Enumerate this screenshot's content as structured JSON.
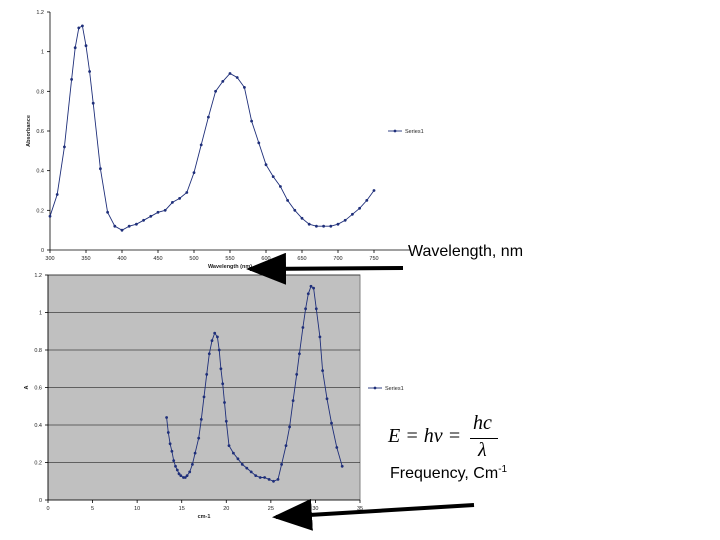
{
  "chart_data": [
    {
      "type": "line",
      "series": [
        {
          "name": "Series1",
          "x": [
            300,
            310,
            320,
            330,
            335,
            340,
            345,
            350,
            355,
            360,
            370,
            380,
            390,
            400,
            410,
            420,
            430,
            440,
            450,
            460,
            470,
            480,
            490,
            500,
            510,
            520,
            530,
            540,
            550,
            560,
            570,
            580,
            590,
            600,
            610,
            620,
            630,
            640,
            650,
            660,
            670,
            680,
            690,
            700,
            710,
            720,
            730,
            740,
            750
          ],
          "y": [
            0.17,
            0.28,
            0.52,
            0.86,
            1.02,
            1.12,
            1.13,
            1.03,
            0.9,
            0.74,
            0.41,
            0.19,
            0.12,
            0.1,
            0.12,
            0.13,
            0.15,
            0.17,
            0.19,
            0.2,
            0.24,
            0.26,
            0.29,
            0.39,
            0.53,
            0.67,
            0.8,
            0.85,
            0.89,
            0.87,
            0.82,
            0.65,
            0.54,
            0.43,
            0.37,
            0.32,
            0.25,
            0.2,
            0.16,
            0.13,
            0.12,
            0.12,
            0.12,
            0.13,
            0.15,
            0.18,
            0.21,
            0.25,
            0.3
          ]
        }
      ],
      "xlabel": "Wavelength (nm)",
      "ylabel": "Absorbance",
      "xlim": [
        300,
        800
      ],
      "ylim": [
        0,
        1.2
      ],
      "xticks": [
        "300",
        "350",
        "400",
        "450",
        "500",
        "550",
        "600",
        "650",
        "700",
        "750"
      ],
      "yticks": [
        "0",
        "0.2",
        "0.4",
        "0.6",
        "0.8",
        "1",
        "1.2"
      ],
      "grid": false,
      "legend": "right"
    },
    {
      "type": "line",
      "series": [
        {
          "name": "Series1",
          "x": [
            13.3,
            13.5,
            13.7,
            13.9,
            14.1,
            14.3,
            14.5,
            14.7,
            14.9,
            15.2,
            15.4,
            15.6,
            15.9,
            16.2,
            16.5,
            16.9,
            17.2,
            17.5,
            17.8,
            18.1,
            18.4,
            18.7,
            19.0,
            19.2,
            19.4,
            19.6,
            19.8,
            20.0,
            20.3,
            20.8,
            21.3,
            21.8,
            22.3,
            22.8,
            23.3,
            23.8,
            24.3,
            24.8,
            25.3,
            25.8,
            26.2,
            26.7,
            27.1,
            27.5,
            27.9,
            28.2,
            28.6,
            28.9,
            29.2,
            29.5,
            29.8,
            30.1,
            30.5,
            30.8,
            31.3,
            31.8,
            32.4,
            33.0
          ],
          "y": [
            0.44,
            0.36,
            0.3,
            0.26,
            0.21,
            0.18,
            0.16,
            0.14,
            0.13,
            0.12,
            0.12,
            0.13,
            0.15,
            0.19,
            0.25,
            0.33,
            0.43,
            0.55,
            0.67,
            0.78,
            0.85,
            0.89,
            0.87,
            0.8,
            0.7,
            0.62,
            0.52,
            0.42,
            0.29,
            0.25,
            0.22,
            0.19,
            0.17,
            0.15,
            0.13,
            0.12,
            0.12,
            0.11,
            0.1,
            0.11,
            0.19,
            0.29,
            0.39,
            0.53,
            0.67,
            0.78,
            0.92,
            1.02,
            1.1,
            1.14,
            1.13,
            1.02,
            0.87,
            0.69,
            0.54,
            0.41,
            0.28,
            0.18
          ]
        }
      ],
      "xlabel": "cm-1",
      "ylabel": "A",
      "xlim": [
        0,
        35
      ],
      "ylim": [
        0,
        1.2
      ],
      "xticks": [
        "0",
        "5",
        "10",
        "15",
        "20",
        "25",
        "30",
        "35"
      ],
      "yticks": [
        "0",
        "0.2",
        "0.4",
        "0.6",
        "0.8",
        "1",
        "1.2"
      ],
      "grid": true,
      "legend": "right",
      "colors": {
        "plot_bg": "#c0c0c0"
      }
    }
  ],
  "annotations": {
    "wavelength_label": "Wavelength, nm",
    "frequency_label": "Frequency, Cm",
    "frequency_exponent": "-1",
    "formula_lhs": "E = hν =",
    "formula_numerator": "hc",
    "formula_denominator": "λ"
  },
  "colors": {
    "series": "#1f2f7a",
    "axis_text": "#222222",
    "arrow": "#000000"
  }
}
